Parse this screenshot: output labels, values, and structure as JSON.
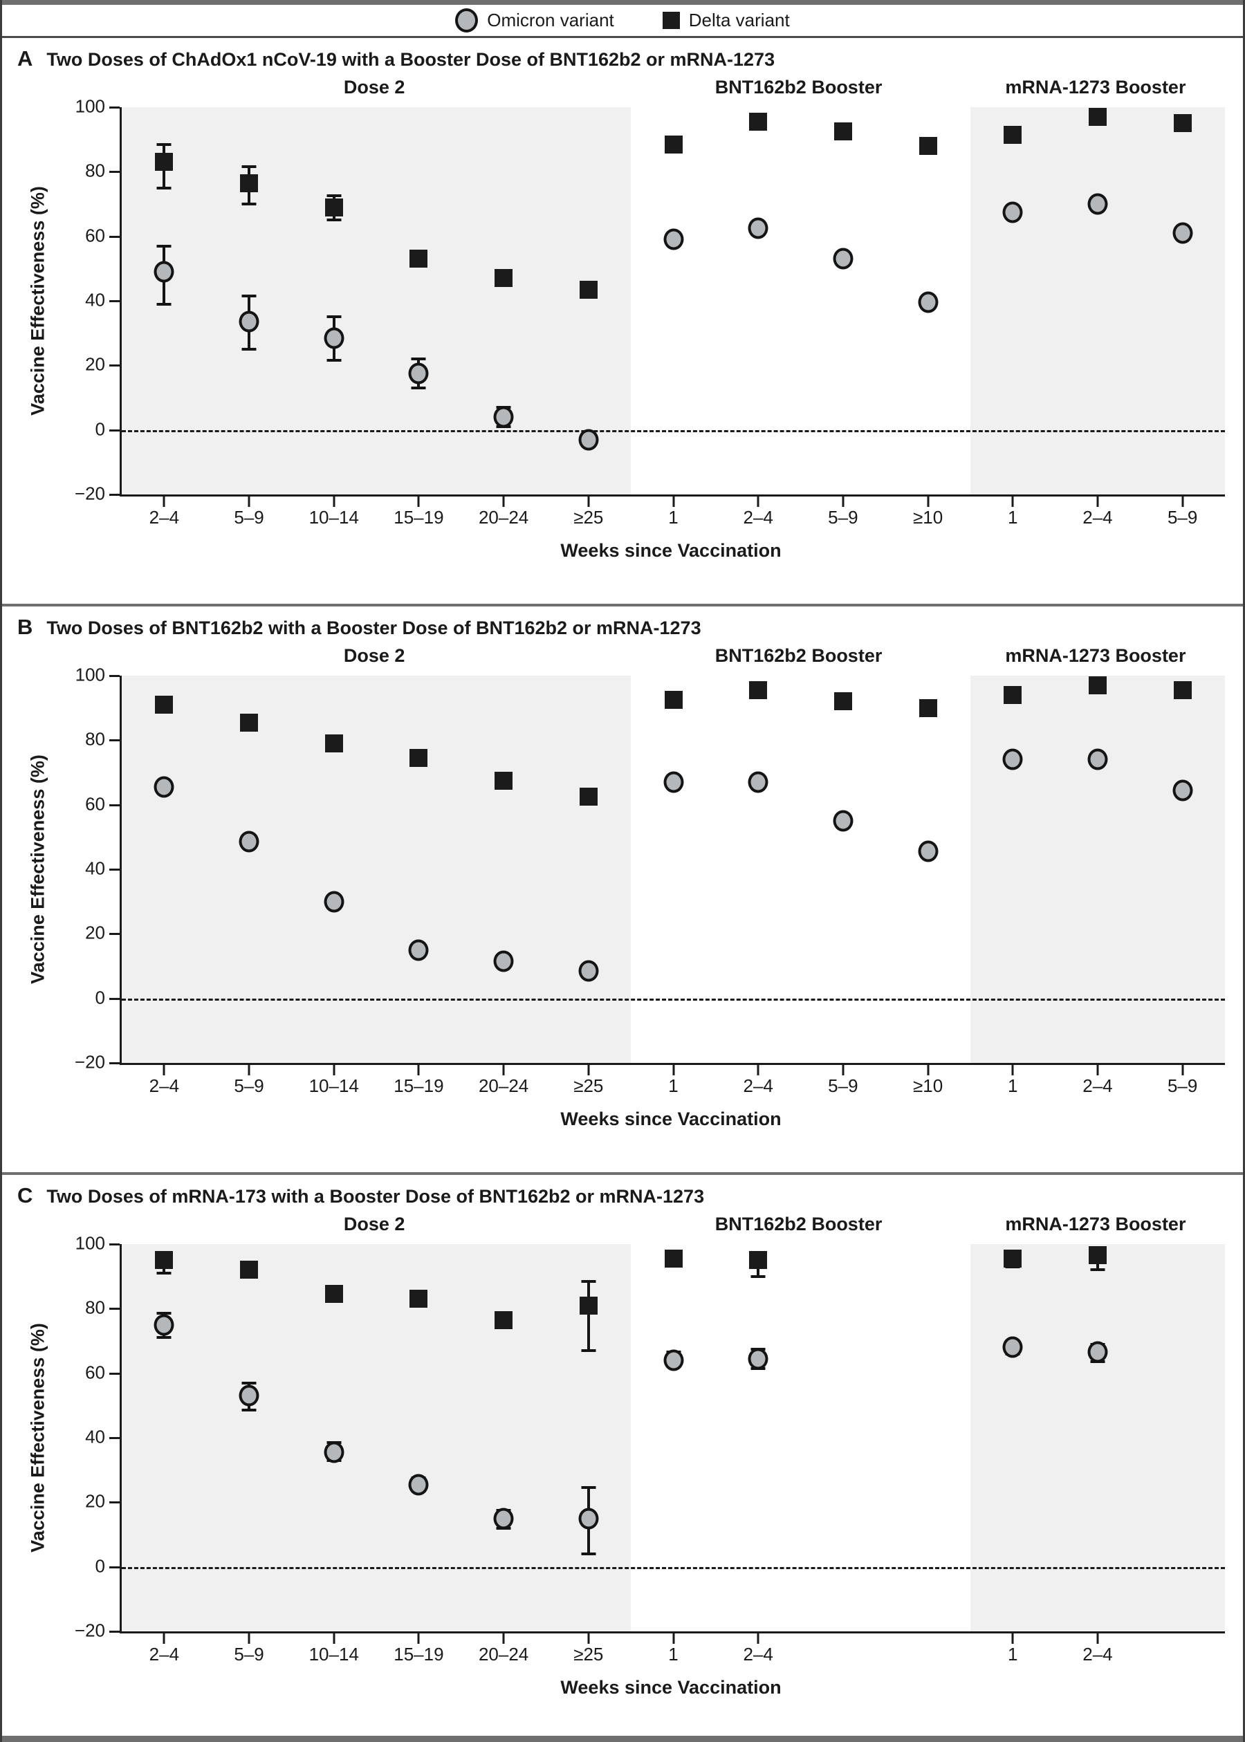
{
  "legend": [
    {
      "label": "Omicron variant",
      "marker": "circle"
    },
    {
      "label": "Delta variant",
      "marker": "square"
    }
  ],
  "colors": {
    "omicron_fill": "#b5b8bb",
    "delta_fill": "#1b1b1b",
    "section_shade": "#f0f0f0",
    "axis": "#1a1a1a",
    "separator_bar": "#6f6f6f"
  },
  "chart_data": {
    "type": "scatter",
    "grid": false,
    "legend_position": "top-center",
    "y_axis": {
      "title": "Vaccine Effectiveness (%)",
      "ticks": [
        100,
        80,
        60,
        40,
        20,
        0,
        -20
      ],
      "min": -20,
      "max": 100
    },
    "x_axis": {
      "title": "Weeks since Vaccination"
    },
    "sections": [
      {
        "label": "Dose 2",
        "slots": 6,
        "shaded": true
      },
      {
        "label": "BNT162b2 Booster",
        "slots": 4,
        "shaded": false
      },
      {
        "label": "mRNA-1273 Booster",
        "slots": 3,
        "shaded": true
      }
    ],
    "panels": [
      {
        "letter": "A",
        "title": "Two Doses of ChAdOx1 nCoV-19 with a Booster Dose of BNT162b2 or mRNA-1273",
        "x_labels": [
          "2–4",
          "5–9",
          "10–14",
          "15–19",
          "20–24",
          "≥25",
          "1",
          "2–4",
          "5–9",
          "≥10",
          "1",
          "2–4",
          "5–9"
        ],
        "omicron": [
          {
            "slot": 1,
            "v": 49,
            "lo": 39,
            "hi": 57
          },
          {
            "slot": 2,
            "v": 33.5,
            "lo": 25,
            "hi": 41.5
          },
          {
            "slot": 3,
            "v": 28.5,
            "lo": 21.5,
            "hi": 35
          },
          {
            "slot": 4,
            "v": 17.5,
            "lo": 13,
            "hi": 22
          },
          {
            "slot": 5,
            "v": 4,
            "lo": 1,
            "hi": 7
          },
          {
            "slot": 6,
            "v": -3,
            "lo": -3,
            "hi": -3
          },
          {
            "slot": 7,
            "v": 59,
            "lo": 59,
            "hi": 59
          },
          {
            "slot": 8,
            "v": 62.5,
            "lo": 62.5,
            "hi": 62.5
          },
          {
            "slot": 9,
            "v": 53,
            "lo": 53,
            "hi": 53
          },
          {
            "slot": 10,
            "v": 39.5,
            "lo": 39.5,
            "hi": 39.5
          },
          {
            "slot": 11,
            "v": 67.5,
            "lo": 67.5,
            "hi": 67.5
          },
          {
            "slot": 12,
            "v": 70,
            "lo": 70,
            "hi": 70
          },
          {
            "slot": 13,
            "v": 61,
            "lo": 61,
            "hi": 61
          }
        ],
        "delta": [
          {
            "slot": 1,
            "v": 83,
            "lo": 75,
            "hi": 88.5
          },
          {
            "slot": 2,
            "v": 76.5,
            "lo": 70,
            "hi": 81.5
          },
          {
            "slot": 3,
            "v": 69,
            "lo": 65,
            "hi": 72.5
          },
          {
            "slot": 4,
            "v": 53,
            "lo": 53,
            "hi": 53
          },
          {
            "slot": 5,
            "v": 47,
            "lo": 47,
            "hi": 47
          },
          {
            "slot": 6,
            "v": 43.5,
            "lo": 43.5,
            "hi": 43.5
          },
          {
            "slot": 7,
            "v": 88.5,
            "lo": 88.5,
            "hi": 88.5
          },
          {
            "slot": 8,
            "v": 95.5,
            "lo": 95.5,
            "hi": 95.5
          },
          {
            "slot": 9,
            "v": 92.5,
            "lo": 92.5,
            "hi": 92.5
          },
          {
            "slot": 10,
            "v": 88,
            "lo": 88,
            "hi": 88
          },
          {
            "slot": 11,
            "v": 91.5,
            "lo": 91.5,
            "hi": 91.5
          },
          {
            "slot": 12,
            "v": 97,
            "lo": 97,
            "hi": 97
          },
          {
            "slot": 13,
            "v": 95,
            "lo": 95,
            "hi": 95
          }
        ]
      },
      {
        "letter": "B",
        "title": "Two Doses of BNT162b2 with a Booster Dose of BNT162b2 or mRNA-1273",
        "x_labels": [
          "2–4",
          "5–9",
          "10–14",
          "15–19",
          "20–24",
          "≥25",
          "1",
          "2–4",
          "5–9",
          "≥10",
          "1",
          "2–4",
          "5–9"
        ],
        "omicron": [
          {
            "slot": 1,
            "v": 65.5,
            "lo": 65.5,
            "hi": 65.5
          },
          {
            "slot": 2,
            "v": 48.5,
            "lo": 48.5,
            "hi": 48.5
          },
          {
            "slot": 3,
            "v": 30,
            "lo": 30,
            "hi": 30
          },
          {
            "slot": 4,
            "v": 15,
            "lo": 15,
            "hi": 15
          },
          {
            "slot": 5,
            "v": 11.5,
            "lo": 11.5,
            "hi": 11.5
          },
          {
            "slot": 6,
            "v": 8.5,
            "lo": 8.5,
            "hi": 8.5
          },
          {
            "slot": 7,
            "v": 67,
            "lo": 67,
            "hi": 67
          },
          {
            "slot": 8,
            "v": 67,
            "lo": 67,
            "hi": 67
          },
          {
            "slot": 9,
            "v": 55,
            "lo": 55,
            "hi": 55
          },
          {
            "slot": 10,
            "v": 45.5,
            "lo": 45.5,
            "hi": 45.5
          },
          {
            "slot": 11,
            "v": 74,
            "lo": 74,
            "hi": 74
          },
          {
            "slot": 12,
            "v": 74,
            "lo": 74,
            "hi": 74
          },
          {
            "slot": 13,
            "v": 64.5,
            "lo": 64.5,
            "hi": 64.5
          }
        ],
        "delta": [
          {
            "slot": 1,
            "v": 91,
            "lo": 91,
            "hi": 91
          },
          {
            "slot": 2,
            "v": 85.5,
            "lo": 85.5,
            "hi": 85.5
          },
          {
            "slot": 3,
            "v": 79,
            "lo": 79,
            "hi": 79
          },
          {
            "slot": 4,
            "v": 74.5,
            "lo": 74.5,
            "hi": 74.5
          },
          {
            "slot": 5,
            "v": 67.5,
            "lo": 67.5,
            "hi": 67.5
          },
          {
            "slot": 6,
            "v": 62.5,
            "lo": 62.5,
            "hi": 62.5
          },
          {
            "slot": 7,
            "v": 92.5,
            "lo": 92.5,
            "hi": 92.5
          },
          {
            "slot": 8,
            "v": 95.5,
            "lo": 95.5,
            "hi": 95.5
          },
          {
            "slot": 9,
            "v": 92,
            "lo": 92,
            "hi": 92
          },
          {
            "slot": 10,
            "v": 90,
            "lo": 90,
            "hi": 90
          },
          {
            "slot": 11,
            "v": 94,
            "lo": 94,
            "hi": 94
          },
          {
            "slot": 12,
            "v": 97,
            "lo": 97,
            "hi": 97
          },
          {
            "slot": 13,
            "v": 95.5,
            "lo": 95.5,
            "hi": 95.5
          }
        ]
      },
      {
        "letter": "C",
        "title": "Two Doses of mRNA-173 with a Booster Dose of BNT162b2 or mRNA-1273",
        "x_labels": [
          "2–4",
          "5–9",
          "10–14",
          "15–19",
          "20–24",
          "≥25",
          "1",
          "2–4",
          "",
          "",
          "1",
          "2–4",
          ""
        ],
        "omicron": [
          {
            "slot": 1,
            "v": 75,
            "lo": 71,
            "hi": 78.5
          },
          {
            "slot": 2,
            "v": 53,
            "lo": 48.5,
            "hi": 57
          },
          {
            "slot": 3,
            "v": 35.5,
            "lo": 33,
            "hi": 38.5
          },
          {
            "slot": 4,
            "v": 25.5,
            "lo": 23.5,
            "hi": 27.5
          },
          {
            "slot": 5,
            "v": 15,
            "lo": 12,
            "hi": 17.5
          },
          {
            "slot": 6,
            "v": 15,
            "lo": 4,
            "hi": 24.5
          },
          {
            "slot": 7,
            "v": 64,
            "lo": 62,
            "hi": 66.5
          },
          {
            "slot": 8,
            "v": 64.5,
            "lo": 61.5,
            "hi": 67.5
          },
          {
            "slot": 11,
            "v": 68,
            "lo": 66,
            "hi": 70
          },
          {
            "slot": 12,
            "v": 66.5,
            "lo": 63.5,
            "hi": 69
          }
        ],
        "delta": [
          {
            "slot": 1,
            "v": 95,
            "lo": 91,
            "hi": 97.5
          },
          {
            "slot": 2,
            "v": 92,
            "lo": 90,
            "hi": 93.5
          },
          {
            "slot": 3,
            "v": 84.5,
            "lo": 84.5,
            "hi": 84.5
          },
          {
            "slot": 4,
            "v": 83,
            "lo": 83,
            "hi": 83
          },
          {
            "slot": 5,
            "v": 76.5,
            "lo": 76.5,
            "hi": 76.5
          },
          {
            "slot": 6,
            "v": 81,
            "lo": 67,
            "hi": 88.5
          },
          {
            "slot": 7,
            "v": 95.5,
            "lo": 93.5,
            "hi": 97
          },
          {
            "slot": 8,
            "v": 95,
            "lo": 90,
            "hi": 97.5
          },
          {
            "slot": 11,
            "v": 95.5,
            "lo": 93,
            "hi": 97
          },
          {
            "slot": 12,
            "v": 96.5,
            "lo": 92,
            "hi": 98.5
          }
        ]
      }
    ]
  }
}
